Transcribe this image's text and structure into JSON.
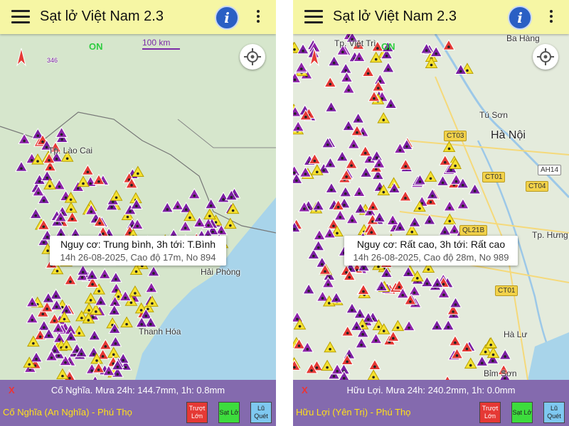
{
  "screens": [
    {
      "header": {
        "title": "Sạt lở Việt Nam 2.3"
      },
      "map": {
        "status": "ON",
        "scale": "100 km",
        "compass_badge": "346",
        "labels": [
          "Tp. Lào Cai",
          "Hải Phòng",
          "Thanh Hóa"
        ]
      },
      "popup": {
        "line1": "Nguy cơ: Trung bình, 3h tới: T.Bình",
        "line2": "14h 26-08-2025, Cao độ 17m, No 894"
      },
      "footer": {
        "close": "X",
        "summary": "Cố Nghĩa. Mưa 24h: 144.7mm, 1h: 0.8mm",
        "location": "Cố Nghĩa (An Nghĩa) - Phú Thọ",
        "buttons": [
          "Trượt Lớn",
          "Sạt Lở",
          "Lũ Quét"
        ]
      }
    },
    {
      "header": {
        "title": "Sạt lở Việt Nam 2.3"
      },
      "map": {
        "status": "ON",
        "scale": "",
        "labels": [
          "Tp. Việt Trì",
          "Ba Hàng",
          "Tú Sơn",
          "Hà Nội",
          "CT03",
          "CT01",
          "AH14",
          "CT04",
          "QL21B",
          "Tp. Hưng",
          "CT01",
          "Hà Lư",
          "Bỉm Sơn"
        ]
      },
      "popup": {
        "line1": "Nguy cơ: Rất cao, 3h tới: Rất cao",
        "line2": "14h 26-08-2025, Cao độ 28m, No 989"
      },
      "footer": {
        "close": "X",
        "summary": "Hữu Lợi. Mưa 24h: 240.2mm, 1h: 0.0mm",
        "location": "Hữu Lợi (Yên Trị) - Phú Thọ",
        "buttons": [
          "Trượt Lớn",
          "Sạt Lở",
          "Lũ Quét"
        ]
      }
    }
  ]
}
